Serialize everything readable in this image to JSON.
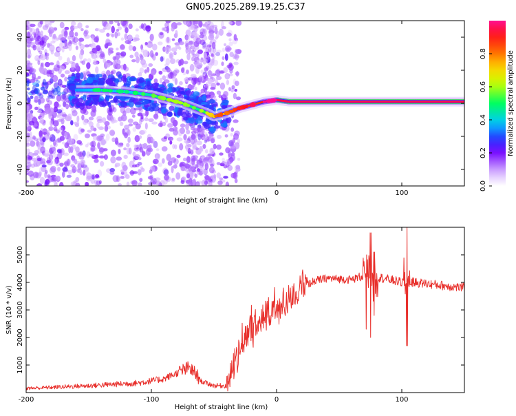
{
  "title": "GN05.2025.289.19.25.C37",
  "chart_data": [
    {
      "type": "heatmap",
      "name": "spectrogram",
      "xlabel": "Height of straight line (km)",
      "ylabel": "Frequency (Hz)",
      "xlim": [
        -200,
        150
      ],
      "ylim": [
        -50,
        50
      ],
      "x_ticks": [
        -200,
        -100,
        0,
        100
      ],
      "y_ticks": [
        -40,
        -20,
        0,
        20,
        40
      ],
      "colorbar_label": "Normalized spectral amplitude",
      "colorbar_range": [
        0,
        1
      ],
      "colorbar_ticks": [
        "0.0",
        "0.2",
        "0.4",
        "0.6",
        "0.8"
      ],
      "ridge": {
        "heights": [
          -160,
          -140,
          -120,
          -100,
          -85,
          -75,
          -65,
          -55,
          -50,
          -45,
          -40,
          -30,
          -20,
          -10,
          0,
          10,
          50,
          100,
          150
        ],
        "freqs": [
          8,
          8,
          7,
          5,
          2,
          0,
          -3,
          -6,
          -8,
          -7,
          -6,
          -3,
          -1,
          1,
          2,
          1,
          1,
          1,
          1
        ],
        "amplitude": [
          0.35,
          0.4,
          0.38,
          0.45,
          0.5,
          0.5,
          0.45,
          0.55,
          0.7,
          0.75,
          0.7,
          0.8,
          0.85,
          0.9,
          0.95,
          0.95,
          0.95,
          0.95,
          0.95
        ]
      }
    },
    {
      "type": "line",
      "name": "snr",
      "xlabel": "Height of straight line (km)",
      "ylabel": "SNR (10 * v/v)",
      "xlim": [
        -200,
        150
      ],
      "ylim": [
        0,
        6000
      ],
      "x_ticks": [
        -200,
        -100,
        0,
        100
      ],
      "y_ticks": [
        1000,
        2000,
        3000,
        4000,
        5000
      ],
      "color": "#e8302c",
      "trend": {
        "x": [
          -200,
          -150,
          -110,
          -90,
          -80,
          -75,
          -70,
          -65,
          -60,
          -50,
          -40,
          -38,
          -30,
          -25,
          -20,
          -10,
          0,
          10,
          20,
          30,
          40,
          60,
          70,
          80,
          90,
          100,
          110,
          130,
          150
        ],
        "y": [
          150,
          250,
          350,
          500,
          700,
          800,
          900,
          700,
          400,
          250,
          250,
          600,
          1400,
          2000,
          2400,
          2700,
          3000,
          3400,
          3800,
          4050,
          4150,
          4100,
          4250,
          4200,
          4100,
          4000,
          4000,
          3900,
          3800
        ]
      },
      "spikes": [
        {
          "x": 72,
          "min": 2300,
          "max": 5000
        },
        {
          "x": 75,
          "min": 2000,
          "max": 5800
        },
        {
          "x": 78,
          "min": 2800,
          "max": 5100
        },
        {
          "x": 104,
          "min": 1700,
          "max": 6000
        }
      ]
    }
  ]
}
